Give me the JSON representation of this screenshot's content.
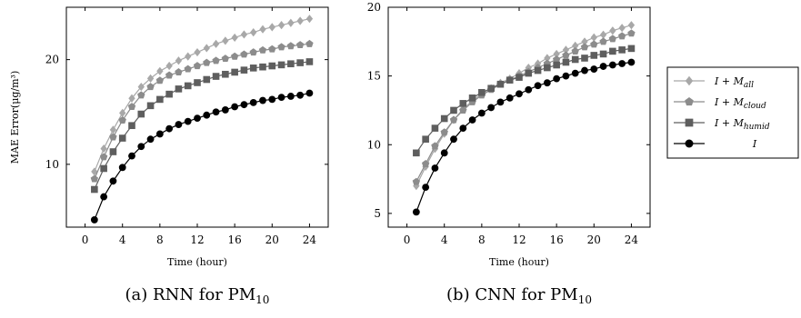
{
  "chart_data": [
    {
      "type": "line",
      "caption": "(a) RNN for PM",
      "caption_sub": "10",
      "xlabel": "Time (hour)",
      "ylabel": "MAE Error(μg/m³)",
      "xlim": [
        -2,
        26
      ],
      "ylim": [
        4,
        25
      ],
      "xticks": [
        0,
        4,
        8,
        12,
        16,
        20,
        24
      ],
      "yticks": [
        10,
        20
      ],
      "x": [
        1,
        2,
        3,
        4,
        5,
        6,
        7,
        8,
        9,
        10,
        11,
        12,
        13,
        14,
        15,
        16,
        17,
        18,
        19,
        20,
        21,
        22,
        23,
        24
      ],
      "series": [
        {
          "name": "I + M_all",
          "marker": "diamond",
          "color": "#a8a8a8",
          "values": [
            9.3,
            11.5,
            13.3,
            14.9,
            16.3,
            17.4,
            18.2,
            18.9,
            19.4,
            19.9,
            20.3,
            20.7,
            21.1,
            21.5,
            21.8,
            22.1,
            22.4,
            22.6,
            22.9,
            23.1,
            23.3,
            23.5,
            23.7,
            23.9
          ]
        },
        {
          "name": "I + M_cloud",
          "marker": "pentagon",
          "color": "#8c8c8c",
          "values": [
            8.6,
            10.7,
            12.6,
            14.2,
            15.5,
            16.6,
            17.4,
            18.0,
            18.5,
            18.8,
            19.1,
            19.4,
            19.7,
            19.9,
            20.1,
            20.3,
            20.5,
            20.7,
            20.9,
            21.0,
            21.2,
            21.3,
            21.4,
            21.5
          ]
        },
        {
          "name": "I + M_humid",
          "marker": "square",
          "color": "#5e5e5e",
          "values": [
            7.6,
            9.6,
            11.2,
            12.5,
            13.7,
            14.8,
            15.6,
            16.2,
            16.7,
            17.2,
            17.5,
            17.8,
            18.1,
            18.4,
            18.6,
            18.8,
            19.0,
            19.2,
            19.3,
            19.4,
            19.5,
            19.6,
            19.7,
            19.8
          ]
        },
        {
          "name": "I",
          "marker": "circle",
          "color": "#000000",
          "values": [
            4.7,
            6.9,
            8.4,
            9.7,
            10.8,
            11.7,
            12.4,
            12.9,
            13.4,
            13.8,
            14.1,
            14.4,
            14.7,
            15.0,
            15.2,
            15.5,
            15.7,
            15.9,
            16.1,
            16.2,
            16.4,
            16.5,
            16.6,
            16.8
          ]
        }
      ]
    },
    {
      "type": "line",
      "caption": "(b) CNN for PM",
      "caption_sub": "10",
      "xlabel": "Time (hour)",
      "ylabel": "",
      "xlim": [
        -2,
        26
      ],
      "ylim": [
        4,
        20
      ],
      "xticks": [
        0,
        4,
        8,
        12,
        16,
        20,
        24
      ],
      "yticks": [
        5,
        10,
        15,
        20
      ],
      "x": [
        1,
        2,
        3,
        4,
        5,
        6,
        7,
        8,
        9,
        10,
        11,
        12,
        13,
        14,
        15,
        16,
        17,
        18,
        19,
        20,
        21,
        22,
        23,
        24
      ],
      "series": [
        {
          "name": "I + M_all",
          "marker": "diamond",
          "color": "#a8a8a8",
          "values": [
            7.0,
            8.4,
            9.7,
            10.8,
            11.8,
            12.6,
            13.2,
            13.7,
            14.1,
            14.5,
            14.8,
            15.2,
            15.6,
            15.9,
            16.3,
            16.6,
            16.9,
            17.2,
            17.5,
            17.8,
            18.0,
            18.3,
            18.5,
            18.7
          ]
        },
        {
          "name": "I + M_cloud",
          "marker": "pentagon",
          "color": "#8c8c8c",
          "values": [
            7.3,
            8.6,
            9.9,
            10.9,
            11.8,
            12.5,
            13.1,
            13.6,
            14.0,
            14.4,
            14.7,
            15.0,
            15.3,
            15.6,
            15.9,
            16.2,
            16.5,
            16.8,
            17.1,
            17.3,
            17.5,
            17.7,
            17.9,
            18.1
          ]
        },
        {
          "name": "I + M_humid",
          "marker": "square",
          "color": "#5e5e5e",
          "values": [
            9.4,
            10.4,
            11.2,
            11.9,
            12.5,
            13.0,
            13.4,
            13.8,
            14.1,
            14.4,
            14.7,
            14.9,
            15.2,
            15.4,
            15.6,
            15.8,
            16.0,
            16.2,
            16.3,
            16.5,
            16.6,
            16.8,
            16.9,
            17.0
          ]
        },
        {
          "name": "I",
          "marker": "circle",
          "color": "#000000",
          "values": [
            5.1,
            6.9,
            8.3,
            9.4,
            10.4,
            11.2,
            11.8,
            12.3,
            12.7,
            13.1,
            13.4,
            13.7,
            14.0,
            14.3,
            14.5,
            14.8,
            15.0,
            15.2,
            15.4,
            15.5,
            15.7,
            15.8,
            15.9,
            16.0
          ]
        }
      ]
    }
  ],
  "legend": {
    "position": "right",
    "entries": [
      {
        "base": "I",
        "plus": " + ",
        "m": "M",
        "sub": "all"
      },
      {
        "base": "I",
        "plus": " + ",
        "m": "M",
        "sub": "cloud"
      },
      {
        "base": "I",
        "plus": " + ",
        "m": "M",
        "sub": "humid"
      },
      {
        "base": "I",
        "plus": "",
        "m": "",
        "sub": ""
      }
    ]
  }
}
